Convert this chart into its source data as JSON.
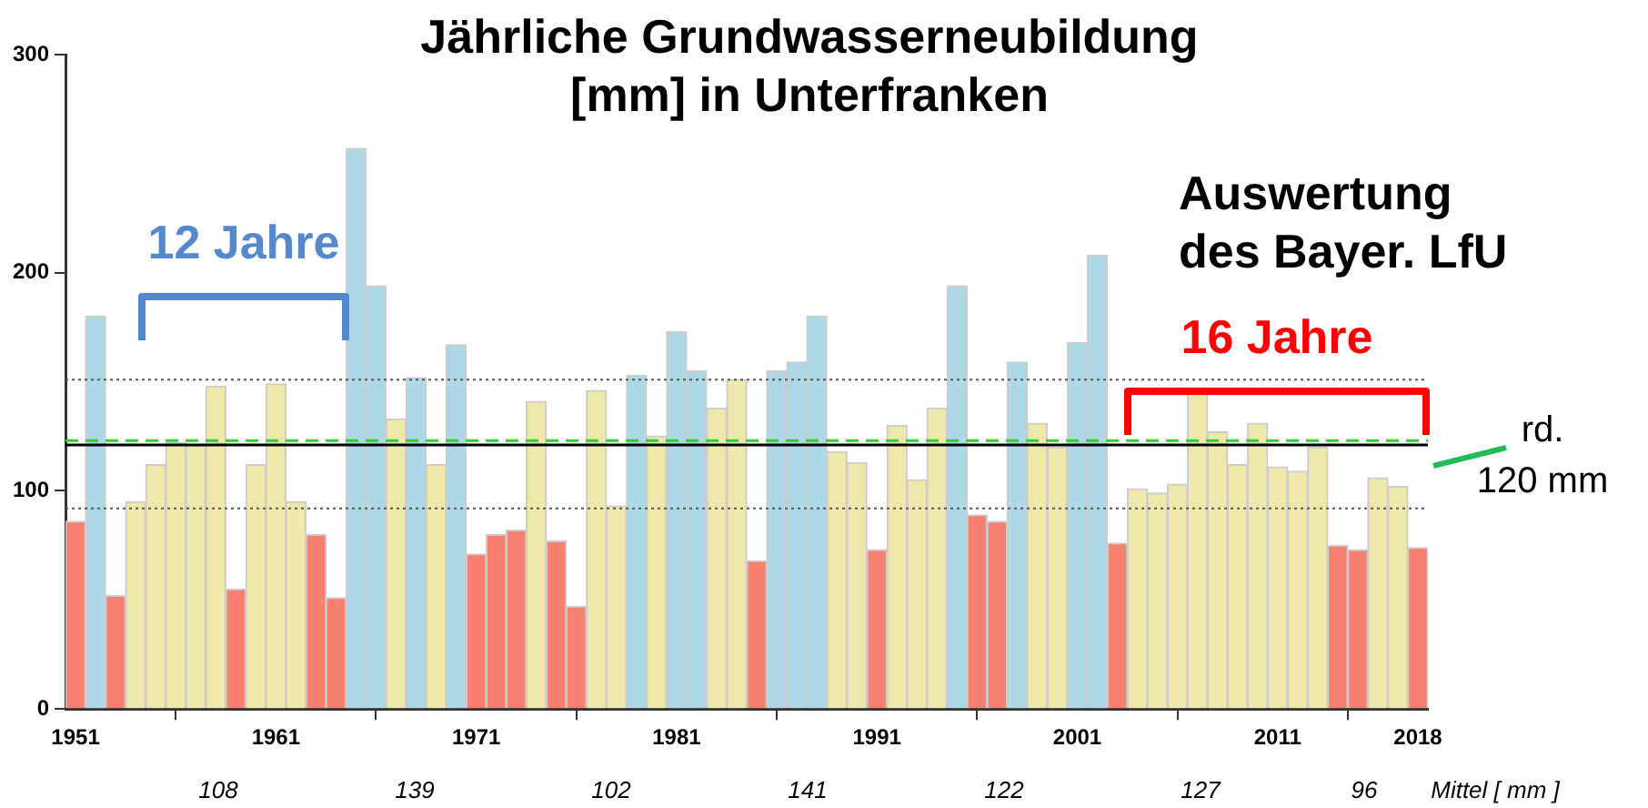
{
  "chart_data": {
    "type": "bar",
    "title": "Jährliche Grundwasserneubildung [mm] in Unterfranken",
    "x": [
      1951,
      1952,
      1953,
      1954,
      1955,
      1956,
      1957,
      1958,
      1959,
      1960,
      1961,
      1962,
      1963,
      1964,
      1965,
      1966,
      1967,
      1968,
      1969,
      1970,
      1971,
      1972,
      1973,
      1974,
      1975,
      1976,
      1977,
      1978,
      1979,
      1980,
      1981,
      1982,
      1983,
      1984,
      1985,
      1986,
      1987,
      1988,
      1989,
      1990,
      1991,
      1992,
      1993,
      1994,
      1995,
      1996,
      1997,
      1998,
      1999,
      2000,
      2001,
      2002,
      2003,
      2004,
      2005,
      2006,
      2007,
      2008,
      2009,
      2010,
      2011,
      2012,
      2013,
      2014,
      2015,
      2016,
      2017,
      2018
    ],
    "values": [
      86,
      180,
      52,
      95,
      112,
      122,
      121,
      148,
      55,
      112,
      149,
      95,
      80,
      51,
      257,
      194,
      133,
      152,
      112,
      167,
      71,
      80,
      82,
      141,
      77,
      47,
      146,
      93,
      153,
      125,
      173,
      155,
      138,
      151,
      68,
      155,
      159,
      180,
      118,
      113,
      73,
      130,
      105,
      138,
      194,
      89,
      86,
      159,
      131,
      120,
      168,
      208,
      76,
      101,
      99,
      103,
      145,
      127,
      112,
      131,
      111,
      109,
      120,
      75,
      73,
      106,
      102,
      74
    ],
    "colors": [
      "#f88070",
      "#add8e6",
      "#f88070",
      "#eee8aa",
      "#eee8aa",
      "#eee8aa",
      "#eee8aa",
      "#eee8aa",
      "#f88070",
      "#eee8aa",
      "#eee8aa",
      "#eee8aa",
      "#f88070",
      "#f88070",
      "#add8e6",
      "#add8e6",
      "#eee8aa",
      "#add8e6",
      "#eee8aa",
      "#add8e6",
      "#f88070",
      "#f88070",
      "#f88070",
      "#eee8aa",
      "#f88070",
      "#f88070",
      "#eee8aa",
      "#eee8aa",
      "#add8e6",
      "#eee8aa",
      "#add8e6",
      "#add8e6",
      "#eee8aa",
      "#eee8aa",
      "#f88070",
      "#add8e6",
      "#add8e6",
      "#add8e6",
      "#eee8aa",
      "#eee8aa",
      "#f88070",
      "#eee8aa",
      "#eee8aa",
      "#eee8aa",
      "#add8e6",
      "#f88070",
      "#f88070",
      "#add8e6",
      "#eee8aa",
      "#eee8aa",
      "#add8e6",
      "#add8e6",
      "#f88070",
      "#eee8aa",
      "#eee8aa",
      "#eee8aa",
      "#eee8aa",
      "#eee8aa",
      "#eee8aa",
      "#eee8aa",
      "#eee8aa",
      "#eee8aa",
      "#eee8aa",
      "#f88070",
      "#f88070",
      "#eee8aa",
      "#eee8aa",
      "#f88070"
    ],
    "xlim": [
      1950.5,
      2018.5
    ],
    "xticks": [
      1951,
      1961,
      1971,
      1981,
      1991,
      2001,
      2011,
      2018
    ],
    "ylim": [
      0,
      300
    ],
    "yticks": [
      0,
      100,
      200,
      300
    ],
    "grid": false,
    "legend": false,
    "ref_lines": [
      {
        "axis": "y",
        "value": 121,
        "color": "#000000",
        "line_style": "solid"
      },
      {
        "axis": "y",
        "value": 123,
        "color": "#33cc33",
        "line_style": "dashed"
      },
      {
        "axis": "y",
        "value": 151,
        "color": "#555555",
        "line_style": "dotted"
      },
      {
        "axis": "y",
        "value": 92,
        "color": "#555555",
        "line_style": "dotted"
      }
    ],
    "annotations": [
      "12 Jahre",
      "16 Jahre",
      "Auswertung des Bayer. LfU",
      "rd. 120 mm",
      "108",
      "139",
      "102",
      "141",
      "122",
      "127",
      "96",
      "Mittel [ mm ]"
    ]
  }
}
